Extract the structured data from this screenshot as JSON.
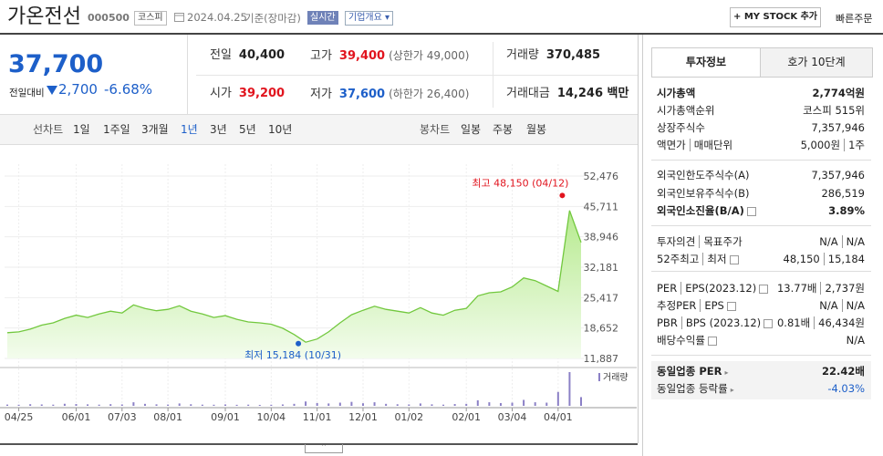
{
  "header": {
    "name": "가온전선",
    "code": "000500",
    "market": "코스피",
    "date": "2024.04.25",
    "basis": "기준(장마감)",
    "realtime": "실시간",
    "company_info": "기업개요",
    "my_stock": "MY STOCK 추가",
    "quick_order": "빠른주문"
  },
  "quote": {
    "price": "37,700",
    "change_label": "전일대비",
    "change": "2,700",
    "change_pct": "-6.68%"
  },
  "stats": [
    [
      {
        "label": "전일",
        "value": "40,400"
      },
      {
        "label": "고가",
        "value": "39,400",
        "note": "(상한가 49,000)"
      },
      {
        "label": "거래량",
        "value": "370,485"
      }
    ],
    [
      {
        "label": "시가",
        "value": "39,200"
      },
      {
        "label": "저가",
        "value": "37,600",
        "note": "(하한가 26,400)"
      },
      {
        "label": "거래대금",
        "value": "14,246 백만"
      }
    ]
  ],
  "periods": {
    "line_label": "선차트",
    "line": [
      "1일",
      "1주일",
      "3개월",
      "1년",
      "3년",
      "5년",
      "10년"
    ],
    "candle_label": "봉차트",
    "candle": [
      "일봉",
      "주봉",
      "월봉"
    ]
  },
  "chart_data": {
    "type": "line",
    "categories": [
      null,
      "04/25",
      null,
      null,
      null,
      null,
      "06/01",
      null,
      null,
      null,
      "07/03",
      null,
      null,
      null,
      "08/01",
      null,
      null,
      null,
      null,
      "09/01",
      null,
      null,
      null,
      "10/04",
      null,
      null,
      null,
      "11/01",
      null,
      null,
      null,
      "12/01",
      null,
      null,
      null,
      "01/02",
      null,
      null,
      null,
      null,
      "02/01",
      null,
      null,
      null,
      "03/04",
      null,
      null,
      null,
      "04/01",
      null,
      null
    ],
    "series": [
      {
        "color": "#72c83e",
        "values": [
          17600,
          17800,
          18400,
          19300,
          19800,
          20800,
          21500,
          21000,
          21800,
          22400,
          22000,
          23800,
          23000,
          22500,
          22800,
          23600,
          22400,
          21800,
          21000,
          21400,
          20600,
          20000,
          19800,
          19500,
          18600,
          17200,
          15500,
          16200,
          17800,
          19800,
          21600,
          22600,
          23500,
          22800,
          22400,
          22000,
          23200,
          22000,
          21500,
          22600,
          23000,
          25800,
          26500,
          26700,
          27800,
          29800,
          29200,
          28000,
          26800,
          44800,
          37700
        ]
      },
      {
        "name": "거래량",
        "color": "#8b80c6",
        "values": [
          320000,
          280000,
          410000,
          350000,
          300000,
          520000,
          450000,
          380000,
          300000,
          420000,
          350000,
          900000,
          500000,
          380000,
          320000,
          600000,
          400000,
          300000,
          280000,
          350000,
          260000,
          300000,
          240000,
          280000,
          350000,
          500000,
          1100000,
          700000,
          600000,
          800000,
          1000000,
          650000,
          900000,
          500000,
          400000,
          350000,
          600000,
          380000,
          300000,
          450000,
          500000,
          1400000,
          900000,
          700000,
          800000,
          1500000,
          900000,
          800000,
          3500000,
          8500000,
          2200000
        ]
      }
    ],
    "ylim": [
      11887,
      52476
    ],
    "yticks": [
      {
        "value": 52476,
        "label": "52,476"
      },
      {
        "value": 45711,
        "label": "45,711"
      },
      {
        "value": 38946,
        "label": "38,946"
      },
      {
        "value": 32181,
        "label": "32,181"
      },
      {
        "value": 25417,
        "label": "25,417"
      },
      {
        "value": 18652,
        "label": "18,652"
      },
      {
        "value": 11887,
        "label": "11,887"
      }
    ],
    "grid": true,
    "annotations": [
      {
        "text": "최고 48,150 (04/12)",
        "value": 48150,
        "color": "#e1141e"
      },
      {
        "text": "최저 15,184 (10/31)",
        "value": 15184,
        "color": "#1d5fc9"
      }
    ]
  },
  "side": {
    "tabs": [
      "투자정보",
      "호가 10단계"
    ],
    "groups": [
      [
        {
          "labels": [
            "시가총액"
          ],
          "values": [
            "2,774억원"
          ]
        },
        {
          "labels": [
            "시가총액순위"
          ],
          "values": [
            "코스피 515위"
          ]
        },
        {
          "labels": [
            "상장주식수"
          ],
          "values": [
            "7,357,946"
          ]
        },
        {
          "labels": [
            "액면가",
            "매매단위"
          ],
          "values": [
            "5,000원",
            "1주"
          ]
        }
      ],
      [
        {
          "labels": [
            "외국인한도주식수(A)"
          ],
          "values": [
            "7,357,946"
          ]
        },
        {
          "labels": [
            "외국인보유주식수(B)"
          ],
          "values": [
            "286,519"
          ]
        },
        {
          "labels": [
            "외국인소진율(B/A)"
          ],
          "values": [
            "3.89%"
          ]
        }
      ],
      [
        {
          "labels": [
            "투자의견",
            "목표주가"
          ],
          "values": [
            "N/A",
            "N/A"
          ]
        },
        {
          "labels": [
            "52주최고",
            "최저"
          ],
          "values": [
            "48,150",
            "15,184"
          ]
        }
      ],
      [
        {
          "labels": [
            "PER",
            "EPS(2023.12)"
          ],
          "values": [
            "13.77배",
            "2,737원"
          ]
        },
        {
          "labels": [
            "추정PER",
            "EPS"
          ],
          "values": [
            "N/A",
            "N/A"
          ]
        },
        {
          "labels": [
            "PBR",
            "BPS (2023.12)"
          ],
          "values": [
            "0.81배",
            "46,434원"
          ]
        },
        {
          "labels": [
            "배당수익률"
          ],
          "values": [
            "N/A"
          ]
        }
      ],
      [
        {
          "labels": [
            "동일업종 PER"
          ],
          "values": [
            "22.42배"
          ]
        },
        {
          "labels": [
            "동일업종 등락률"
          ],
          "values": [
            "-4.03%"
          ]
        }
      ]
    ]
  }
}
